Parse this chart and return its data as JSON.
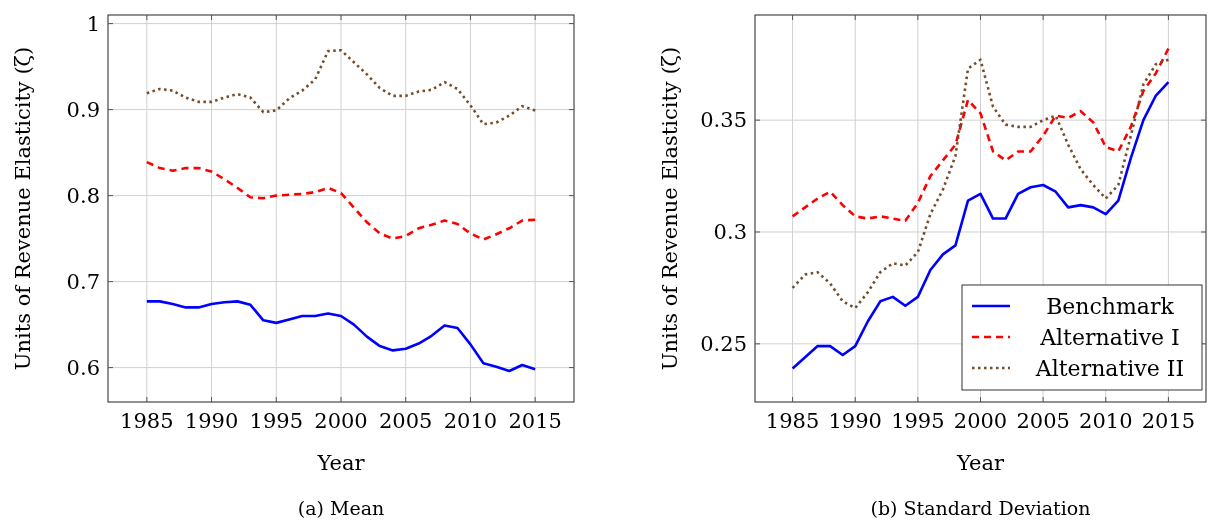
{
  "chart_data": [
    {
      "type": "line",
      "title": "(a) Mean",
      "xlabel": "Year",
      "ylabel": "Units of Revenue Elasticity (ζ)",
      "x": [
        1985,
        1986,
        1987,
        1988,
        1989,
        1990,
        1991,
        1992,
        1993,
        1994,
        1995,
        1996,
        1997,
        1998,
        1999,
        2000,
        2001,
        2002,
        2003,
        2004,
        2005,
        2006,
        2007,
        2008,
        2009,
        2010,
        2011,
        2012,
        2013,
        2014,
        2015
      ],
      "xlim": [
        1982,
        2018
      ],
      "xticks": [
        1985,
        1990,
        1995,
        2000,
        2005,
        2010,
        2015
      ],
      "ylim": [
        0.56,
        1.01
      ],
      "yticks": [
        0.6,
        0.7,
        0.8,
        0.9,
        1
      ],
      "grid": true,
      "legend": false,
      "marker": "none",
      "series": [
        {
          "color": "#0000ff",
          "line_style": "solid",
          "values": [
            0.677,
            0.677,
            0.674,
            0.67,
            0.67,
            0.674,
            0.676,
            0.677,
            0.673,
            0.655,
            0.652,
            0.656,
            0.66,
            0.66,
            0.663,
            0.66,
            0.65,
            0.636,
            0.625,
            0.62,
            0.622,
            0.628,
            0.637,
            0.649,
            0.646,
            0.627,
            0.605,
            0.601,
            0.596,
            0.603,
            0.598
          ]
        },
        {
          "color": "#ff0000",
          "line_style": "dashed",
          "values": [
            0.839,
            0.832,
            0.829,
            0.832,
            0.832,
            0.828,
            0.819,
            0.809,
            0.798,
            0.797,
            0.8,
            0.801,
            0.802,
            0.804,
            0.809,
            0.803,
            0.786,
            0.769,
            0.756,
            0.75,
            0.753,
            0.762,
            0.766,
            0.771,
            0.767,
            0.756,
            0.749,
            0.755,
            0.762,
            0.771,
            0.772
          ]
        },
        {
          "color": "#754c29",
          "line_style": "dotted",
          "values": [
            0.919,
            0.924,
            0.922,
            0.914,
            0.909,
            0.909,
            0.914,
            0.918,
            0.914,
            0.897,
            0.899,
            0.913,
            0.922,
            0.935,
            0.968,
            0.969,
            0.955,
            0.941,
            0.925,
            0.916,
            0.916,
            0.921,
            0.923,
            0.932,
            0.924,
            0.905,
            0.883,
            0.885,
            0.893,
            0.904,
            0.899
          ]
        }
      ]
    },
    {
      "type": "line",
      "title": "(b) Standard Deviation",
      "xlabel": "Year",
      "ylabel": "Units of Revenue Elasticity (ζ)",
      "x": [
        1985,
        1986,
        1987,
        1988,
        1989,
        1990,
        1991,
        1992,
        1993,
        1994,
        1995,
        1996,
        1997,
        1998,
        1999,
        2000,
        2001,
        2002,
        2003,
        2004,
        2005,
        2006,
        2007,
        2008,
        2009,
        2010,
        2011,
        2012,
        2013,
        2014,
        2015
      ],
      "xlim": [
        1982,
        2018
      ],
      "xticks": [
        1985,
        1990,
        1995,
        2000,
        2005,
        2010,
        2015
      ],
      "ylim": [
        0.224,
        0.397
      ],
      "yticks": [
        0.25,
        0.3,
        0.35
      ],
      "grid": true,
      "legend": "bottom right",
      "marker": "none",
      "series": [
        {
          "name": "Benchmark",
          "color": "#0000ff",
          "line_style": "solid",
          "values": [
            0.239,
            0.244,
            0.249,
            0.249,
            0.245,
            0.249,
            0.26,
            0.269,
            0.271,
            0.267,
            0.271,
            0.283,
            0.29,
            0.294,
            0.314,
            0.317,
            0.306,
            0.306,
            0.317,
            0.32,
            0.321,
            0.318,
            0.311,
            0.312,
            0.311,
            0.308,
            0.314,
            0.333,
            0.35,
            0.361,
            0.367
          ]
        },
        {
          "name": "Alternative I",
          "color": "#ff0000",
          "line_style": "dashed",
          "values": [
            0.307,
            0.311,
            0.315,
            0.318,
            0.312,
            0.307,
            0.306,
            0.307,
            0.306,
            0.305,
            0.313,
            0.325,
            0.332,
            0.339,
            0.359,
            0.353,
            0.336,
            0.332,
            0.336,
            0.336,
            0.343,
            0.352,
            0.351,
            0.354,
            0.349,
            0.338,
            0.336,
            0.347,
            0.363,
            0.371,
            0.382
          ]
        },
        {
          "name": "Alternative II",
          "color": "#754c29",
          "line_style": "dotted",
          "values": [
            0.275,
            0.281,
            0.282,
            0.277,
            0.269,
            0.266,
            0.273,
            0.282,
            0.286,
            0.285,
            0.291,
            0.308,
            0.319,
            0.334,
            0.373,
            0.377,
            0.356,
            0.348,
            0.347,
            0.347,
            0.35,
            0.352,
            0.339,
            0.328,
            0.321,
            0.315,
            0.321,
            0.343,
            0.366,
            0.375,
            0.377
          ]
        }
      ]
    }
  ]
}
